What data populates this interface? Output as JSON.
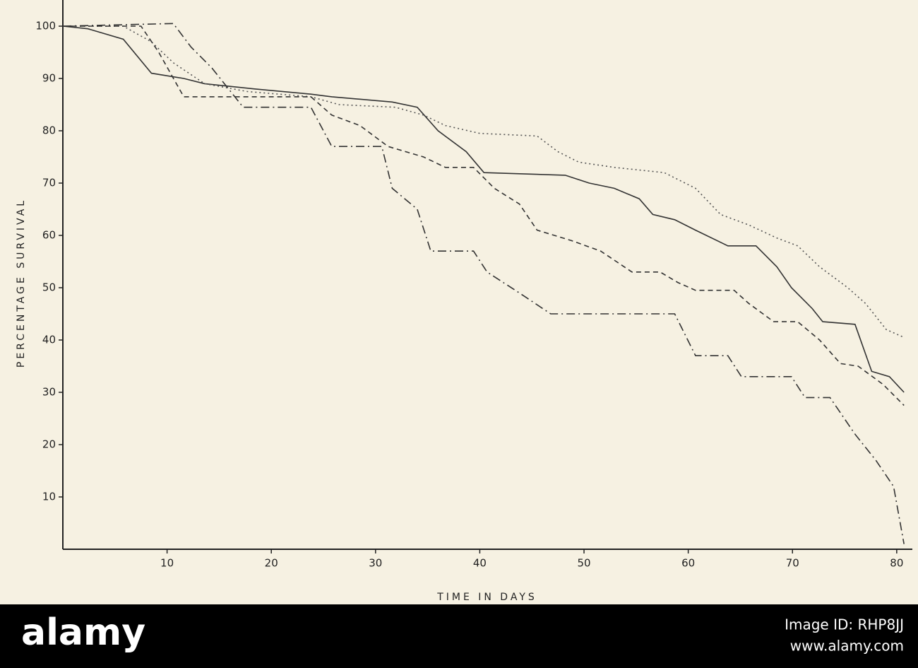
{
  "chart_data": {
    "type": "line",
    "xlabel": "TIME IN DAYS",
    "ylabel": "PERCENTAGE SURVIVAL",
    "xlim": [
      0,
      81.5
    ],
    "ylim": [
      0,
      105
    ],
    "xticks": [
      10,
      20,
      30,
      40,
      50,
      60,
      70,
      80
    ],
    "yticks": [
      10,
      20,
      30,
      40,
      50,
      60,
      70,
      80,
      90,
      100
    ],
    "grid": false,
    "series": [
      {
        "color": "#333333",
        "style": "solid",
        "x": [
          0,
          2.4,
          5.8,
          8.5,
          11.6,
          13.6,
          18.4,
          23.8,
          25.8,
          31.6,
          34,
          36,
          38.7,
          40.4,
          48.2,
          50.5,
          52.9,
          55.3,
          56.6,
          58.7,
          60.7,
          63.8,
          66.5,
          68.5,
          69.9,
          71.9,
          72.9,
          76,
          77.6,
          79.3,
          80.7
        ],
        "values": [
          100,
          99.5,
          97.5,
          91,
          90,
          89,
          88,
          87,
          86.5,
          85.5,
          84.5,
          80,
          76,
          72,
          71.5,
          70,
          69,
          67,
          64,
          63,
          61,
          58,
          58,
          54,
          50,
          46,
          43.5,
          43,
          34,
          33,
          30
        ]
      },
      {
        "color": "#555555",
        "style": "dotted",
        "x": [
          0,
          5.8,
          8.5,
          10.6,
          13.6,
          17.7,
          23.8,
          26.5,
          31.9,
          34.6,
          36.7,
          40,
          45.5,
          47.5,
          49.5,
          52.9,
          57.7,
          60.7,
          63.1,
          65.8,
          68.5,
          70.5,
          72.6,
          75.3,
          77,
          79,
          80.7
        ],
        "values": [
          100,
          100,
          97,
          93,
          89,
          87.5,
          86.5,
          85,
          84.5,
          83,
          81,
          79.5,
          79,
          76,
          74,
          73,
          72,
          69,
          64,
          62,
          59.5,
          58,
          54,
          50,
          47,
          42,
          40.5
        ]
      },
      {
        "color": "#333333",
        "style": "dashed",
        "x": [
          0,
          7.5,
          9.2,
          11.6,
          23.8,
          25.8,
          28.5,
          31.2,
          34.6,
          36.7,
          39.4,
          41.4,
          43.8,
          45.5,
          48.8,
          51.6,
          54.6,
          57.3,
          59,
          60.7,
          64.4,
          65.8,
          68.2,
          70.5,
          72.6,
          74.6,
          76.3,
          78.7,
          80.7
        ],
        "values": [
          100,
          100,
          95,
          86.5,
          86.5,
          83,
          81,
          77,
          75,
          73,
          73,
          69,
          66,
          61,
          59,
          57,
          53,
          53,
          51,
          49.5,
          49.5,
          47,
          43.5,
          43.5,
          40,
          35.5,
          35,
          31.5,
          27.5
        ]
      },
      {
        "color": "#333333",
        "style": "dashdot",
        "x": [
          0,
          10.6,
          12.3,
          14.3,
          17.3,
          23.8,
          25.8,
          30.6,
          31.6,
          34,
          35.3,
          39.4,
          40.7,
          43.8,
          46.8,
          58.7,
          60.7,
          63.8,
          65.1,
          69.9,
          71.2,
          73.6,
          76,
          78,
          79.7,
          80.7
        ],
        "values": [
          100,
          100.5,
          96,
          92,
          84.5,
          84.5,
          77,
          77,
          69,
          65,
          57,
          57,
          53,
          49,
          45,
          45,
          37,
          37,
          33,
          33,
          29,
          29,
          22,
          17,
          12,
          1
        ]
      }
    ]
  },
  "footer": {
    "logo": "alamy",
    "image_id": "Image ID: RHP8JJ",
    "url": "www.alamy.com"
  }
}
